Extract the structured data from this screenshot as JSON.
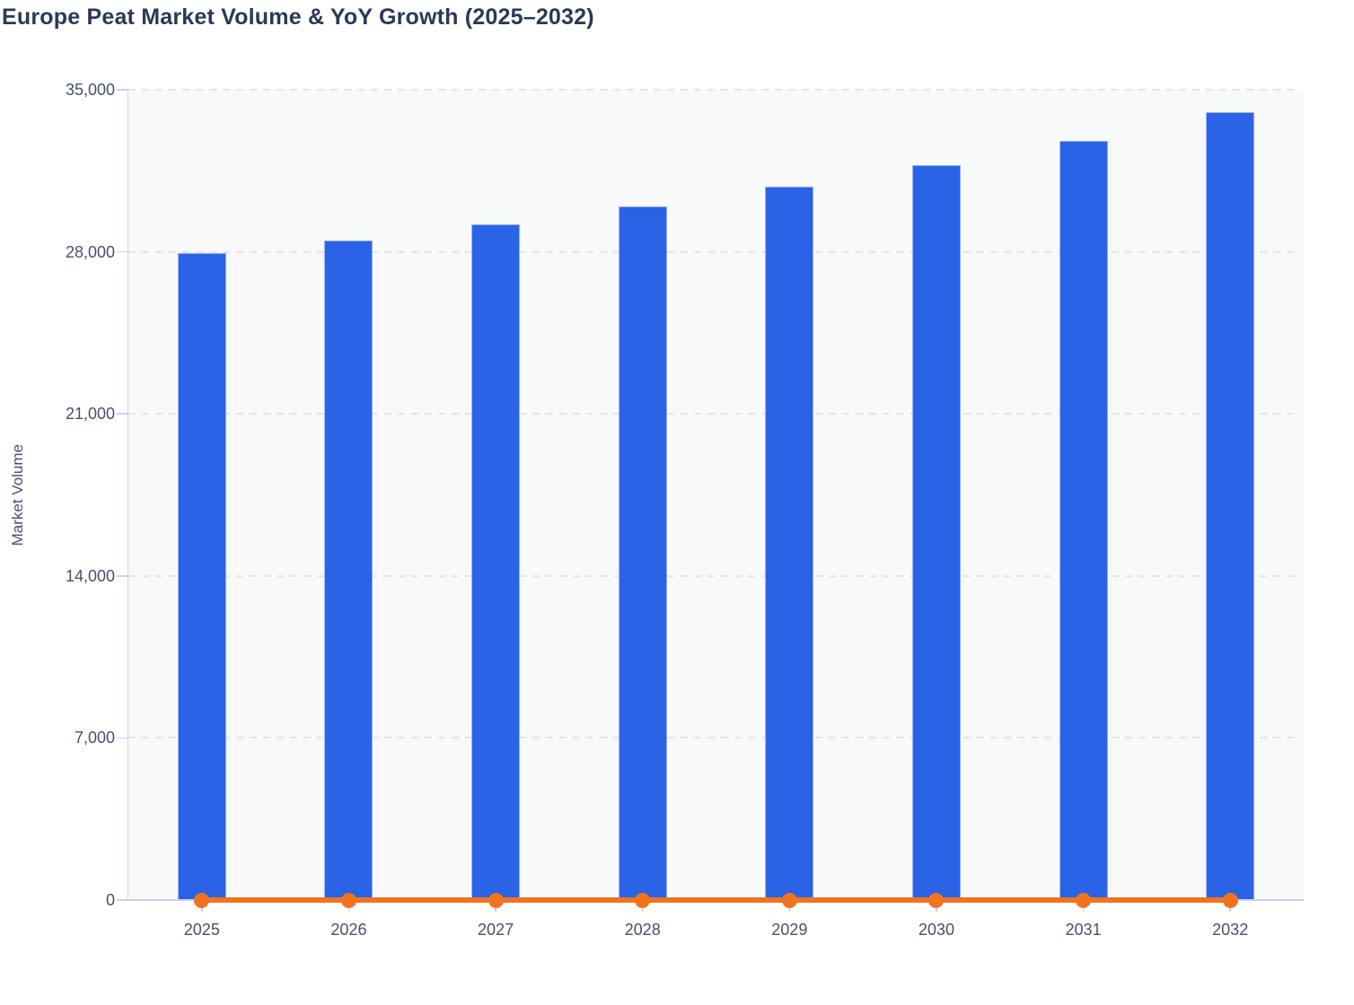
{
  "title": "Europe Peat Market Volume & YoY Growth (2025–2032)",
  "chart_data": {
    "type": "bar",
    "subtype": "bar+line combo",
    "title": "Europe Peat Market Volume & YoY Growth (2025–2032)",
    "categories": [
      "2025",
      "2026",
      "2027",
      "2028",
      "2029",
      "2030",
      "2031",
      "2032"
    ],
    "series": [
      {
        "name": "Market Volume",
        "type": "bar",
        "values": [
          27930,
          28480,
          29170,
          29960,
          30800,
          31730,
          32780,
          34030
        ]
      },
      {
        "name": "YoY Growth",
        "type": "line",
        "values": [
          0,
          0,
          0,
          0,
          0,
          0,
          0,
          0
        ],
        "rendered": "flat orange line with round markers drawn at y≈0 of the left axis; no secondary axis labels visible"
      }
    ],
    "xlabel": "",
    "ylabel": "Market Volume",
    "ylim": [
      0,
      35000
    ],
    "yticks": [
      0,
      7000,
      14000,
      21000,
      28000,
      35000
    ],
    "ytick_labels": [
      "0",
      "7,000",
      "14,000",
      "21,000",
      "28,000",
      "35,000"
    ],
    "grid": "horizontal dashed gridlines, no vertical gridlines",
    "legend": "none"
  },
  "colors": {
    "bar_fill": "#2a63e6",
    "bar_stroke": "#98b1f2",
    "line": "#f1731e",
    "marker": "#f1731e",
    "title_text": "#28395a",
    "tick_text": "#44516d",
    "grid": "#e3e4e9",
    "axis": "#c8d1f2",
    "plot_bg": "#f8f9fb",
    "page_bg": "#ffffff"
  }
}
